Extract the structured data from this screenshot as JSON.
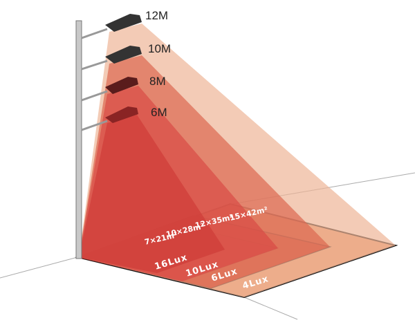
{
  "heights": [
    {
      "label": "12M",
      "lux": "4Lux",
      "area": "15×42m²",
      "color": "#eeb597"
    },
    {
      "label": "10M",
      "lux": "6Lux",
      "area": "12×35m²",
      "color": "#e06848"
    },
    {
      "label": "8M",
      "lux": "10Lux",
      "area": "10×28m²",
      "color": "#d83028"
    },
    {
      "label": "6M",
      "lux": "16Lux",
      "area": "7×21m²",
      "color": "#c83030"
    }
  ]
}
